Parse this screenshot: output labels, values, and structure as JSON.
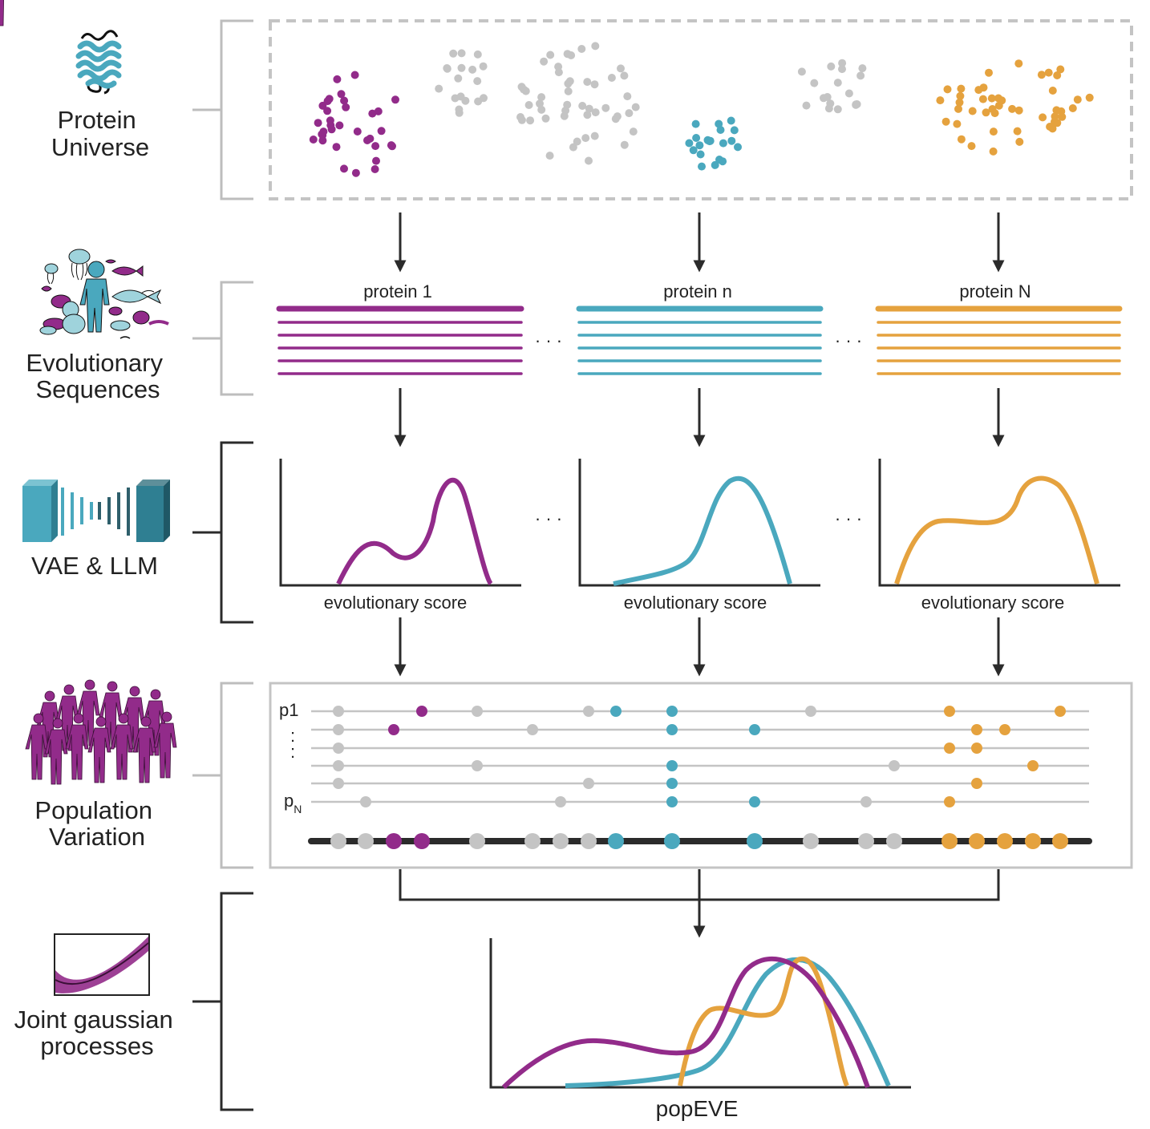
{
  "colors": {
    "purple": "#922B8A",
    "teal": "#4AA8BE",
    "orange": "#E5A23E",
    "gray": "#C4C4C4",
    "dark": "#2B2B2B",
    "bracket_light": "#BDBDBD"
  },
  "icons": [
    "protein-structure-icon",
    "species-collage-icon",
    "encoder-decoder-icon",
    "human-population-icon",
    "gaussian-process-icon"
  ],
  "stages": [
    {
      "id": "protein-universe",
      "label_lines": [
        "Protein",
        "Universe"
      ]
    },
    {
      "id": "evolutionary-sequences",
      "label_lines": [
        "Evolutionary",
        "Sequences"
      ]
    },
    {
      "id": "vae-llm",
      "label_lines": [
        "VAE & LLM"
      ]
    },
    {
      "id": "population-variation",
      "label_lines": [
        "Population",
        "Variation"
      ]
    },
    {
      "id": "joint-gp",
      "label_lines": [
        "Joint gaussian",
        "processes"
      ]
    }
  ],
  "proteins": [
    {
      "label": "protein 1",
      "color": "purple"
    },
    {
      "label": "protein n",
      "color": "teal"
    },
    {
      "label": "protein N",
      "color": "orange"
    }
  ],
  "ellipsis": "· · ·",
  "score_axis_label": "evolutionary score",
  "population": {
    "row_label_first": "p1",
    "row_label_last_base": "p",
    "row_label_last_sub": "N",
    "vertical_dots": ":"
  },
  "output_axis_label": "popEVE"
}
